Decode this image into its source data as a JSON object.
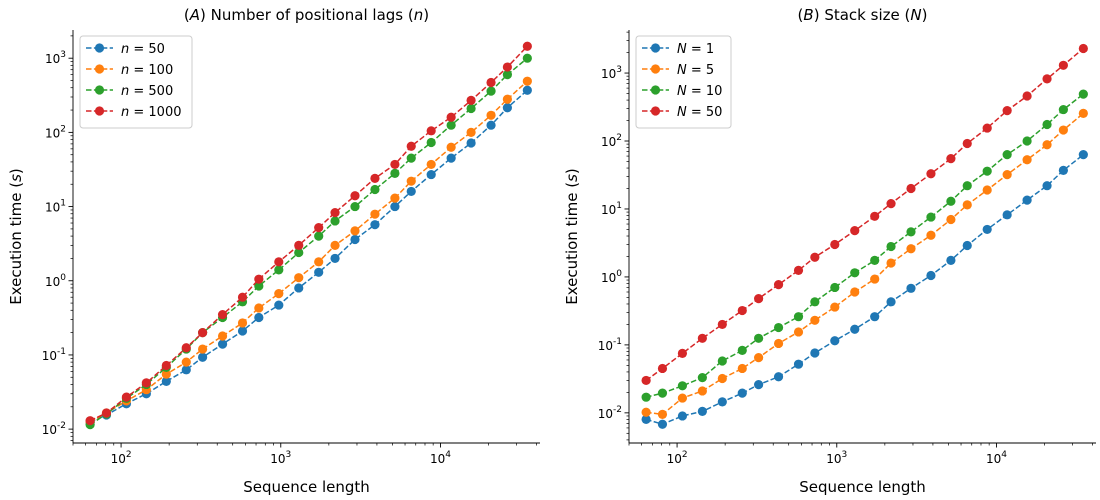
{
  "chart_data": [
    {
      "type": "line",
      "title": "(A) Number of positional lags (n)",
      "xlabel": "Sequence length",
      "ylabel": "Execution time (s)",
      "xscale": "log",
      "yscale": "log",
      "xlim": [
        50,
        42000
      ],
      "ylim": [
        0.0065,
        2400
      ],
      "xticks": [
        {
          "value": 100,
          "label": "10^2"
        },
        {
          "value": 1000,
          "label": "10^3"
        },
        {
          "value": 10000,
          "label": "10^4"
        }
      ],
      "yticks": [
        {
          "value": 0.01,
          "label": "10^-2"
        },
        {
          "value": 0.1,
          "label": "10^-1"
        },
        {
          "value": 1,
          "label": "10^0"
        },
        {
          "value": 10,
          "label": "10^1"
        },
        {
          "value": 100,
          "label": "10^2"
        },
        {
          "value": 1000,
          "label": "10^3"
        }
      ],
      "legend_position": "top-left",
      "grid": false,
      "x": [
        64,
        81,
        108,
        144,
        192,
        256,
        324,
        432,
        576,
        729,
        972,
        1296,
        1728,
        2187,
        2916,
        3888,
        5184,
        6561,
        8748,
        11664,
        15552,
        20736,
        26244,
        34992
      ],
      "series": [
        {
          "name": "n = 50",
          "color": "#1f77b4",
          "values": [
            0.0125,
            0.0155,
            0.022,
            0.03,
            0.044,
            0.063,
            0.093,
            0.14,
            0.21,
            0.32,
            0.47,
            0.8,
            1.3,
            2.0,
            3.6,
            5.7,
            10,
            16,
            27,
            45,
            72,
            125,
            215,
            370
          ]
        },
        {
          "name": "n = 100",
          "color": "#ff7f0e",
          "values": [
            0.0125,
            0.0165,
            0.024,
            0.034,
            0.055,
            0.08,
            0.12,
            0.18,
            0.27,
            0.43,
            0.67,
            1.1,
            1.8,
            3.0,
            4.7,
            7.9,
            13,
            22,
            37,
            63,
            100,
            170,
            280,
            490
          ]
        },
        {
          "name": "n = 500",
          "color": "#2ca02c",
          "values": [
            0.0115,
            0.016,
            0.026,
            0.04,
            0.068,
            0.12,
            0.2,
            0.32,
            0.52,
            0.85,
            1.4,
            2.4,
            4.0,
            6.4,
            10,
            17,
            28,
            45,
            73,
            125,
            210,
            360,
            600,
            1000
          ]
        },
        {
          "name": "n = 1000",
          "color": "#d62728",
          "values": [
            0.013,
            0.0165,
            0.027,
            0.042,
            0.072,
            0.125,
            0.2,
            0.35,
            0.6,
            1.05,
            1.8,
            3.0,
            5.2,
            8.3,
            14,
            24,
            37,
            65,
            105,
            160,
            270,
            470,
            760,
            1450
          ]
        }
      ]
    },
    {
      "type": "line",
      "title": "(B) Stack size (N)",
      "xlabel": "Sequence length",
      "ylabel": "Execution time (s)",
      "xscale": "log",
      "yscale": "log",
      "xlim": [
        50,
        42000
      ],
      "ylim": [
        0.0036,
        4300
      ],
      "xticks": [
        {
          "value": 100,
          "label": "10^2"
        },
        {
          "value": 1000,
          "label": "10^3"
        },
        {
          "value": 10000,
          "label": "10^4"
        }
      ],
      "yticks": [
        {
          "value": 0.01,
          "label": "10^-2"
        },
        {
          "value": 0.1,
          "label": "10^-1"
        },
        {
          "value": 1,
          "label": "10^0"
        },
        {
          "value": 10,
          "label": "10^1"
        },
        {
          "value": 100,
          "label": "10^2"
        },
        {
          "value": 1000,
          "label": "10^3"
        }
      ],
      "legend_position": "top-left",
      "grid": false,
      "x": [
        64,
        81,
        108,
        144,
        192,
        256,
        324,
        432,
        576,
        729,
        972,
        1296,
        1728,
        2187,
        2916,
        3888,
        5184,
        6561,
        8748,
        11664,
        15552,
        20736,
        26244,
        34992
      ],
      "series": [
        {
          "name": "N = 1",
          "color": "#1f77b4",
          "values": [
            0.008,
            0.0068,
            0.009,
            0.0105,
            0.0145,
            0.0195,
            0.026,
            0.034,
            0.052,
            0.076,
            0.115,
            0.17,
            0.26,
            0.43,
            0.68,
            1.05,
            1.75,
            2.9,
            5.0,
            8.2,
            13.5,
            22,
            37,
            63
          ]
        },
        {
          "name": "N = 5",
          "color": "#ff7f0e",
          "values": [
            0.0102,
            0.0095,
            0.0165,
            0.021,
            0.032,
            0.045,
            0.065,
            0.105,
            0.155,
            0.23,
            0.36,
            0.6,
            0.93,
            1.6,
            2.6,
            4.1,
            7.0,
            11.5,
            19,
            32,
            53,
            88,
            145,
            255
          ]
        },
        {
          "name": "N = 10",
          "color": "#2ca02c",
          "values": [
            0.017,
            0.0195,
            0.025,
            0.033,
            0.058,
            0.083,
            0.125,
            0.18,
            0.26,
            0.43,
            0.7,
            1.15,
            1.75,
            2.8,
            4.6,
            7.6,
            13,
            22,
            36,
            63,
            100,
            175,
            290,
            490
          ]
        },
        {
          "name": "N = 50",
          "color": "#d62728",
          "values": [
            0.03,
            0.045,
            0.075,
            0.125,
            0.2,
            0.32,
            0.48,
            0.77,
            1.25,
            1.95,
            3.0,
            4.8,
            7.8,
            12,
            20,
            33,
            55,
            92,
            155,
            280,
            460,
            820,
            1300,
            2300
          ]
        }
      ]
    }
  ]
}
